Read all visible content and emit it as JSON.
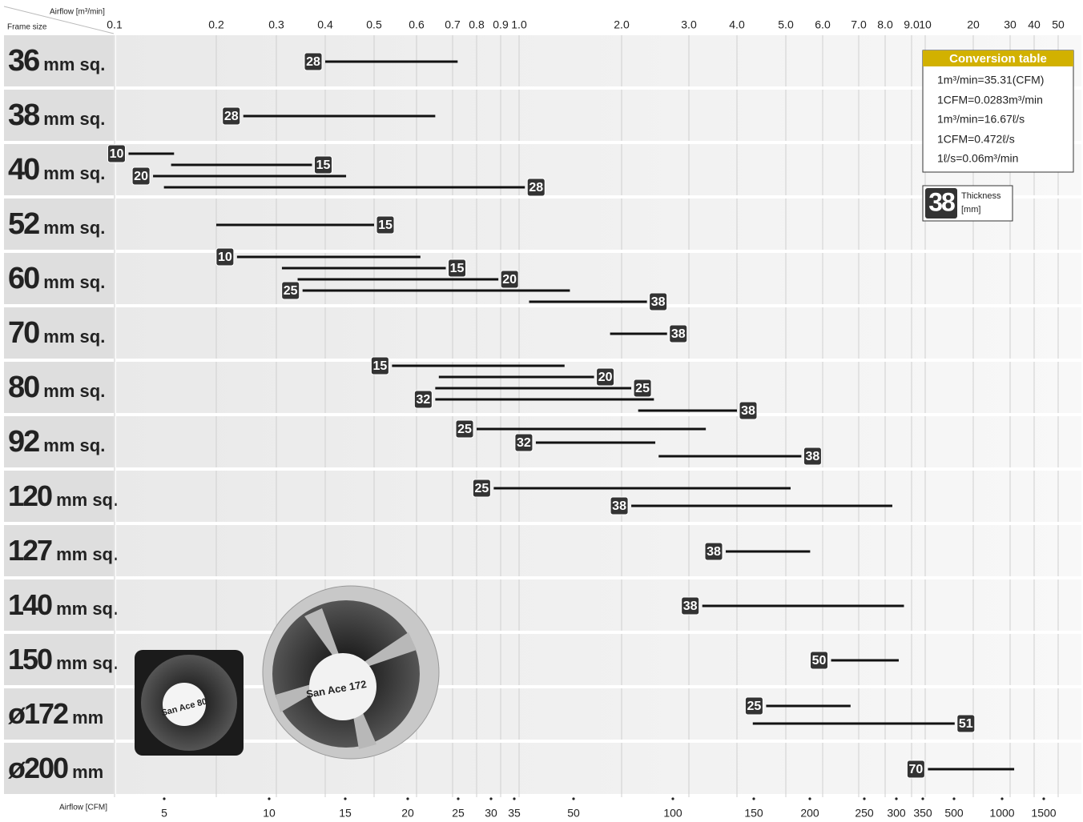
{
  "chart_data": {
    "type": "range",
    "x_label": "Airflow [m³/min]",
    "y_label": "Frame size",
    "x2_label": "Airflow [CFM]",
    "log_scale": true,
    "grid": true,
    "xlim": [
      0.1,
      55
    ],
    "xticks": [
      0.1,
      0.2,
      0.3,
      0.4,
      0.5,
      0.6,
      0.7,
      0.8,
      0.9,
      {
        "value": 1,
        "label": "1.0"
      },
      {
        "value": 2,
        "label": "2.0"
      },
      {
        "value": 3,
        "label": "3.0"
      },
      {
        "value": 4,
        "label": "4.0"
      },
      {
        "value": 5,
        "label": "5.0"
      },
      {
        "value": 6,
        "label": "6.0"
      },
      {
        "value": 7,
        "label": "7.0"
      },
      {
        "value": 8,
        "label": "8.0"
      },
      {
        "value": 9,
        "label": "9.0"
      },
      10,
      20,
      30,
      40,
      50
    ],
    "x2lim": [
      3.5,
      1950
    ],
    "x2ticks": [
      5,
      10,
      15,
      20,
      25,
      30,
      35,
      50,
      100,
      150,
      200,
      250,
      300,
      350,
      500,
      1000,
      1500
    ],
    "color": "#111111",
    "rows": [
      {
        "size": "36",
        "unit": "mm sq.",
        "bars": [
          {
            "thickness": 28,
            "start": 0.4,
            "end": 0.72
          }
        ]
      },
      {
        "size": "38",
        "unit": "mm sq.",
        "bars": [
          {
            "thickness": 28,
            "start": 0.24,
            "end": 0.65
          }
        ]
      },
      {
        "size": "40",
        "unit": "mm sq.",
        "bars": [
          {
            "thickness": 10,
            "start": 0.11,
            "end": 0.15
          },
          {
            "thickness": 15,
            "start": 0.147,
            "end": 0.37
          },
          {
            "thickness": 20,
            "start": 0.13,
            "end": 0.44
          },
          {
            "thickness": 28,
            "start": 0.14,
            "end": 1.04
          }
        ]
      },
      {
        "size": "52",
        "unit": "mm sq.",
        "bars": [
          {
            "thickness": 15,
            "start": 0.2,
            "end": 0.5
          }
        ]
      },
      {
        "size": "60",
        "unit": "mm sq.",
        "bars": [
          {
            "thickness": 10,
            "start": 0.23,
            "end": 0.61
          },
          {
            "thickness": 15,
            "start": 0.31,
            "end": 0.68
          },
          {
            "thickness": 20,
            "start": 0.34,
            "end": 0.89
          },
          {
            "thickness": 25,
            "start": 0.35,
            "end": 1.41
          },
          {
            "thickness": 38,
            "start": 1.07,
            "end": 2.33
          }
        ]
      },
      {
        "size": "70",
        "unit": "mm sq.",
        "bars": [
          {
            "thickness": 38,
            "start": 1.85,
            "end": 2.63
          }
        ]
      },
      {
        "size": "80",
        "unit": "mm sq.",
        "bars": [
          {
            "thickness": 15,
            "start": 0.54,
            "end": 1.36
          },
          {
            "thickness": 20,
            "start": 0.66,
            "end": 1.66
          },
          {
            "thickness": 25,
            "start": 0.65,
            "end": 2.12
          },
          {
            "thickness": 32,
            "start": 0.65,
            "end": 2.43
          },
          {
            "thickness": 38,
            "start": 2.21,
            "end": 4.0
          }
        ]
      },
      {
        "size": "92",
        "unit": "mm sq.",
        "bars": [
          {
            "thickness": 25,
            "start": 0.8,
            "end": 3.32
          },
          {
            "thickness": 32,
            "start": 1.12,
            "end": 2.45
          },
          {
            "thickness": 38,
            "start": 2.5,
            "end": 5.4
          }
        ]
      },
      {
        "size": "120",
        "unit": "mm sq.",
        "bars": [
          {
            "thickness": 25,
            "start": 0.87,
            "end": 5.12
          },
          {
            "thickness": 38,
            "start": 2.12,
            "end": 8.26
          }
        ]
      },
      {
        "size": "127",
        "unit": "mm sq.",
        "bars": [
          {
            "thickness": 38,
            "start": 3.74,
            "end": 5.64
          }
        ]
      },
      {
        "size": "140",
        "unit": "mm sq.",
        "bars": [
          {
            "thickness": 38,
            "start": 3.25,
            "end": 8.7
          }
        ]
      },
      {
        "size": "150",
        "unit": "mm sq.",
        "bars": [
          {
            "thickness": 50,
            "start": 6.22,
            "end": 8.5
          }
        ]
      },
      {
        "size": "ø172",
        "unit": "mm",
        "bars": [
          {
            "thickness": 25,
            "start": 4.57,
            "end": 6.76
          },
          {
            "thickness": 51,
            "start": 4.3,
            "end": 15.3
          }
        ]
      },
      {
        "size": "ø200",
        "unit": "mm",
        "bars": [
          {
            "thickness": 70,
            "start": 10.4,
            "end": 31.5
          }
        ]
      }
    ]
  },
  "conversion_table": {
    "title": "Conversion table",
    "lines": [
      "1m³/min=35.31(CFM)",
      "1CFM=0.0283m³/min",
      "1m³/min=16.67ℓ/s",
      "1CFM=0.472ℓ/s",
      "1ℓ/s=0.06m³/min"
    ]
  },
  "legend": {
    "sample": 38,
    "label": "Thickness",
    "unit": "[mm]"
  },
  "photos": [
    "San Ace 80",
    "San Ace 172"
  ]
}
